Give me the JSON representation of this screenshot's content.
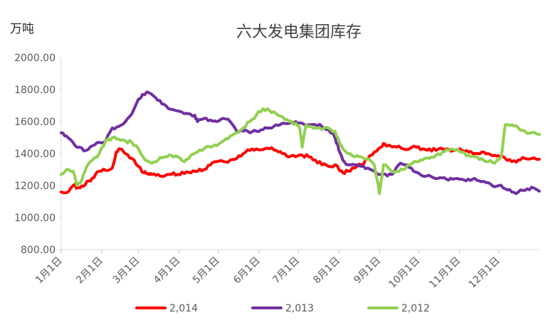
{
  "chart_data": {
    "type": "line",
    "title": "六大发电集团库存",
    "ylabel": "万吨",
    "xlabel": "",
    "ylim": [
      800,
      2000
    ],
    "yticks": [
      "800.00",
      "1000.00",
      "1200.00",
      "1400.00",
      "1600.00",
      "1800.00",
      "2000.00"
    ],
    "x_tick_labels": [
      "1月1日",
      "2月1日",
      "3月1日",
      "4月1日",
      "5月1日",
      "6月1日",
      "7月1日",
      "8月1日",
      "9月1日",
      "10月1日",
      "11月1日",
      "12月1日"
    ],
    "x_tick_days": [
      1,
      32,
      60,
      91,
      121,
      152,
      182,
      213,
      244,
      274,
      305,
      335
    ],
    "xlim": [
      1,
      366
    ],
    "grid": false,
    "legend_position": "bottom",
    "series": [
      {
        "name": "2,014",
        "color": "#FF0000",
        "points": [
          [
            1,
            1160
          ],
          [
            7,
            1165
          ],
          [
            10,
            1200
          ],
          [
            14,
            1190
          ],
          [
            18,
            1195
          ],
          [
            22,
            1230
          ],
          [
            26,
            1250
          ],
          [
            30,
            1290
          ],
          [
            35,
            1295
          ],
          [
            40,
            1310
          ],
          [
            43,
            1410
          ],
          [
            46,
            1430
          ],
          [
            50,
            1400
          ],
          [
            55,
            1370
          ],
          [
            60,
            1320
          ],
          [
            64,
            1280
          ],
          [
            67,
            1275
          ],
          [
            70,
            1270
          ],
          [
            75,
            1270
          ],
          [
            80,
            1260
          ],
          [
            85,
            1270
          ],
          [
            90,
            1270
          ],
          [
            95,
            1275
          ],
          [
            100,
            1280
          ],
          [
            105,
            1290
          ],
          [
            110,
            1300
          ],
          [
            115,
            1330
          ],
          [
            120,
            1350
          ],
          [
            125,
            1350
          ],
          [
            130,
            1360
          ],
          [
            135,
            1370
          ],
          [
            140,
            1400
          ],
          [
            145,
            1420
          ],
          [
            150,
            1430
          ],
          [
            155,
            1425
          ],
          [
            160,
            1430
          ],
          [
            165,
            1420
          ],
          [
            170,
            1400
          ],
          [
            175,
            1380
          ],
          [
            180,
            1380
          ],
          [
            185,
            1390
          ],
          [
            190,
            1380
          ],
          [
            195,
            1360
          ],
          [
            200,
            1330
          ],
          [
            205,
            1320
          ],
          [
            210,
            1330
          ],
          [
            213,
            1300
          ],
          [
            216,
            1280
          ],
          [
            220,
            1290
          ],
          [
            225,
            1310
          ],
          [
            230,
            1330
          ],
          [
            235,
            1370
          ],
          [
            240,
            1410
          ],
          [
            245,
            1440
          ],
          [
            248,
            1460
          ],
          [
            252,
            1450
          ],
          [
            257,
            1440
          ],
          [
            262,
            1430
          ],
          [
            267,
            1430
          ],
          [
            272,
            1440
          ],
          [
            277,
            1430
          ],
          [
            282,
            1430
          ],
          [
            287,
            1420
          ],
          [
            292,
            1430
          ],
          [
            297,
            1425
          ],
          [
            302,
            1420
          ],
          [
            307,
            1420
          ],
          [
            312,
            1410
          ],
          [
            317,
            1400
          ],
          [
            322,
            1410
          ],
          [
            327,
            1400
          ],
          [
            332,
            1390
          ],
          [
            336,
            1380
          ],
          [
            340,
            1370
          ],
          [
            345,
            1350
          ],
          [
            350,
            1360
          ],
          [
            355,
            1370
          ],
          [
            360,
            1370
          ],
          [
            366,
            1365
          ]
        ]
      },
      {
        "name": "2,013",
        "color": "#7030A0",
        "points": [
          [
            1,
            1530
          ],
          [
            5,
            1510
          ],
          [
            10,
            1470
          ],
          [
            15,
            1440
          ],
          [
            20,
            1420
          ],
          [
            25,
            1450
          ],
          [
            30,
            1470
          ],
          [
            35,
            1480
          ],
          [
            40,
            1560
          ],
          [
            45,
            1570
          ],
          [
            50,
            1600
          ],
          [
            55,
            1650
          ],
          [
            60,
            1740
          ],
          [
            63,
            1770
          ],
          [
            68,
            1780
          ],
          [
            73,
            1750
          ],
          [
            78,
            1710
          ],
          [
            83,
            1680
          ],
          [
            88,
            1670
          ],
          [
            93,
            1660
          ],
          [
            98,
            1650
          ],
          [
            103,
            1640
          ],
          [
            105,
            1600
          ],
          [
            110,
            1620
          ],
          [
            115,
            1610
          ],
          [
            120,
            1600
          ],
          [
            125,
            1620
          ],
          [
            130,
            1600
          ],
          [
            135,
            1540
          ],
          [
            140,
            1540
          ],
          [
            145,
            1530
          ],
          [
            150,
            1540
          ],
          [
            155,
            1550
          ],
          [
            160,
            1560
          ],
          [
            165,
            1580
          ],
          [
            170,
            1590
          ],
          [
            175,
            1590
          ],
          [
            180,
            1600
          ],
          [
            185,
            1590
          ],
          [
            190,
            1580
          ],
          [
            195,
            1580
          ],
          [
            200,
            1570
          ],
          [
            205,
            1550
          ],
          [
            210,
            1500
          ],
          [
            213,
            1420
          ],
          [
            216,
            1360
          ],
          [
            220,
            1330
          ],
          [
            225,
            1330
          ],
          [
            230,
            1320
          ],
          [
            235,
            1310
          ],
          [
            240,
            1290
          ],
          [
            245,
            1270
          ],
          [
            250,
            1260
          ],
          [
            255,
            1280
          ],
          [
            260,
            1340
          ],
          [
            265,
            1330
          ],
          [
            270,
            1290
          ],
          [
            275,
            1270
          ],
          [
            280,
            1260
          ],
          [
            285,
            1250
          ],
          [
            290,
            1250
          ],
          [
            295,
            1240
          ],
          [
            300,
            1240
          ],
          [
            305,
            1240
          ],
          [
            310,
            1230
          ],
          [
            315,
            1240
          ],
          [
            320,
            1230
          ],
          [
            325,
            1220
          ],
          [
            330,
            1200
          ],
          [
            335,
            1200
          ],
          [
            340,
            1180
          ],
          [
            345,
            1160
          ],
          [
            350,
            1160
          ],
          [
            355,
            1170
          ],
          [
            360,
            1190
          ],
          [
            366,
            1165
          ]
        ]
      },
      {
        "name": "2,012",
        "color": "#92D050",
        "points": [
          [
            1,
            1270
          ],
          [
            5,
            1300
          ],
          [
            10,
            1290
          ],
          [
            13,
            1200
          ],
          [
            17,
            1240
          ],
          [
            20,
            1310
          ],
          [
            25,
            1360
          ],
          [
            30,
            1400
          ],
          [
            35,
            1480
          ],
          [
            40,
            1500
          ],
          [
            45,
            1490
          ],
          [
            50,
            1480
          ],
          [
            55,
            1470
          ],
          [
            60,
            1430
          ],
          [
            65,
            1360
          ],
          [
            70,
            1340
          ],
          [
            75,
            1360
          ],
          [
            80,
            1380
          ],
          [
            85,
            1390
          ],
          [
            90,
            1380
          ],
          [
            95,
            1350
          ],
          [
            100,
            1390
          ],
          [
            105,
            1410
          ],
          [
            110,
            1430
          ],
          [
            115,
            1440
          ],
          [
            120,
            1450
          ],
          [
            125,
            1480
          ],
          [
            130,
            1510
          ],
          [
            135,
            1530
          ],
          [
            140,
            1560
          ],
          [
            145,
            1600
          ],
          [
            150,
            1640
          ],
          [
            155,
            1680
          ],
          [
            160,
            1670
          ],
          [
            165,
            1650
          ],
          [
            170,
            1630
          ],
          [
            175,
            1600
          ],
          [
            180,
            1590
          ],
          [
            183,
            1560
          ],
          [
            185,
            1440
          ],
          [
            188,
            1580
          ],
          [
            192,
            1570
          ],
          [
            196,
            1560
          ],
          [
            200,
            1550
          ],
          [
            205,
            1560
          ],
          [
            210,
            1540
          ],
          [
            213,
            1480
          ],
          [
            216,
            1430
          ],
          [
            220,
            1400
          ],
          [
            225,
            1380
          ],
          [
            230,
            1380
          ],
          [
            235,
            1370
          ],
          [
            240,
            1330
          ],
          [
            244,
            1150
          ],
          [
            247,
            1330
          ],
          [
            252,
            1300
          ],
          [
            257,
            1290
          ],
          [
            262,
            1300
          ],
          [
            267,
            1330
          ],
          [
            272,
            1350
          ],
          [
            277,
            1360
          ],
          [
            282,
            1370
          ],
          [
            287,
            1390
          ],
          [
            292,
            1410
          ],
          [
            297,
            1420
          ],
          [
            302,
            1420
          ],
          [
            307,
            1410
          ],
          [
            312,
            1390
          ],
          [
            317,
            1380
          ],
          [
            322,
            1370
          ],
          [
            327,
            1350
          ],
          [
            332,
            1340
          ],
          [
            337,
            1380
          ],
          [
            340,
            1580
          ],
          [
            345,
            1580
          ],
          [
            350,
            1560
          ],
          [
            355,
            1540
          ],
          [
            360,
            1530
          ],
          [
            366,
            1520
          ]
        ]
      }
    ]
  }
}
